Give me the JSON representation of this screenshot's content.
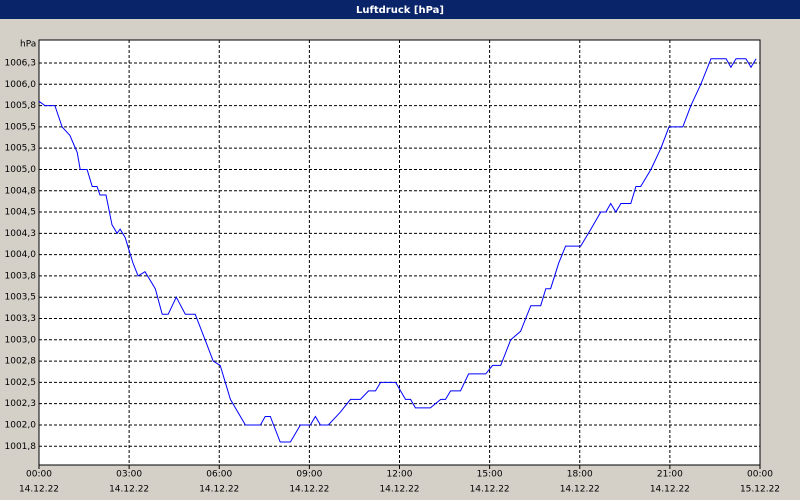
{
  "chart_data": {
    "type": "line",
    "title": "Luftdruck [hPa]",
    "y_label": "hPa",
    "color": "#0000ff",
    "grid": true,
    "x": [
      0,
      0.2,
      0.53,
      0.77,
      1.03,
      1.27,
      1.37,
      1.6,
      1.77,
      1.93,
      2.03,
      2.23,
      2.43,
      2.6,
      2.7,
      2.87,
      3.13,
      3.3,
      3.53,
      3.87,
      4.1,
      4.3,
      4.57,
      4.87,
      5.2,
      5.53,
      5.8,
      6.03,
      6.37,
      6.87,
      7.37,
      7.53,
      7.7,
      8.03,
      8.37,
      8.7,
      9.03,
      9.2,
      9.37,
      9.63,
      10.03,
      10.37,
      10.7,
      10.97,
      11.2,
      11.37,
      11.87,
      12.2,
      12.37,
      12.53,
      13.03,
      13.37,
      13.53,
      13.7,
      14.03,
      14.3,
      14.87,
      15.1,
      15.37,
      15.7,
      16.03,
      16.37,
      16.7,
      16.87,
      17.03,
      17.3,
      17.53,
      18.03,
      18.37,
      18.7,
      18.87,
      19.03,
      19.2,
      19.37,
      19.7,
      19.87,
      20.03,
      20.37,
      20.7,
      20.97,
      21.43,
      21.7,
      22.03,
      22.37,
      22.87,
      23.03,
      23.2,
      23.53,
      23.7,
      23.87
    ],
    "values": [
      1005.8,
      1005.75,
      1005.75,
      1005.5,
      1005.4,
      1005.2,
      1005.0,
      1005.0,
      1004.8,
      1004.8,
      1004.7,
      1004.7,
      1004.35,
      1004.25,
      1004.3,
      1004.2,
      1003.9,
      1003.75,
      1003.8,
      1003.6,
      1003.3,
      1003.3,
      1003.5,
      1003.3,
      1003.3,
      1003.0,
      1002.75,
      1002.7,
      1002.3,
      1002.0,
      1002.0,
      1002.1,
      1002.1,
      1001.8,
      1001.8,
      1002.0,
      1002.0,
      1002.1,
      1002.0,
      1002.0,
      1002.15,
      1002.3,
      1002.3,
      1002.4,
      1002.4,
      1002.5,
      1002.5,
      1002.3,
      1002.3,
      1002.2,
      1002.2,
      1002.3,
      1002.3,
      1002.4,
      1002.4,
      1002.6,
      1002.6,
      1002.7,
      1002.7,
      1003.0,
      1003.1,
      1003.4,
      1003.4,
      1003.6,
      1003.6,
      1003.9,
      1004.1,
      1004.1,
      1004.3,
      1004.5,
      1004.5,
      1004.6,
      1004.5,
      1004.6,
      1004.6,
      1004.8,
      1004.8,
      1005.0,
      1005.25,
      1005.5,
      1005.5,
      1005.75,
      1006.0,
      1006.3,
      1006.3,
      1006.2,
      1006.3,
      1006.3,
      1006.2,
      1006.3
    ],
    "xlim": [
      0,
      24
    ],
    "xticks": [
      {
        "value": 0,
        "label": "00:00"
      },
      {
        "value": 3,
        "label": "03:00"
      },
      {
        "value": 6,
        "label": "06:00"
      },
      {
        "value": 9,
        "label": "09:00"
      },
      {
        "value": 12,
        "label": "12:00"
      },
      {
        "value": 15,
        "label": "15:00"
      },
      {
        "value": 18,
        "label": "18:00"
      },
      {
        "value": 21,
        "label": "21:00"
      },
      {
        "value": 24,
        "label": "00:00"
      }
    ],
    "xtick_dates": [
      "14.12.22",
      "14.12.22",
      "14.12.22",
      "14.12.22",
      "14.12.22",
      "14.12.22",
      "14.12.22",
      "14.12.22",
      "15.12.22"
    ],
    "ylim": [
      1001.53,
      1006.52
    ],
    "yticks": [
      {
        "value": 1001.75,
        "label": "1001,8"
      },
      {
        "value": 1002,
        "label": "1002,0"
      },
      {
        "value": 1002.25,
        "label": "1002,3"
      },
      {
        "value": 1002.5,
        "label": "1002,5"
      },
      {
        "value": 1002.75,
        "label": "1002,8"
      },
      {
        "value": 1003,
        "label": "1003,0"
      },
      {
        "value": 1003.25,
        "label": "1003,3"
      },
      {
        "value": 1003.5,
        "label": "1003,5"
      },
      {
        "value": 1003.75,
        "label": "1003,8"
      },
      {
        "value": 1004,
        "label": "1004,0"
      },
      {
        "value": 1004.25,
        "label": "1004,3"
      },
      {
        "value": 1004.5,
        "label": "1004,5"
      },
      {
        "value": 1004.75,
        "label": "1004,8"
      },
      {
        "value": 1005,
        "label": "1005,0"
      },
      {
        "value": 1005.25,
        "label": "1005,3"
      },
      {
        "value": 1005.5,
        "label": "1005,5"
      },
      {
        "value": 1005.75,
        "label": "1005,8"
      },
      {
        "value": 1006,
        "label": "1006,0"
      },
      {
        "value": 1006.25,
        "label": "1006,3"
      }
    ]
  }
}
